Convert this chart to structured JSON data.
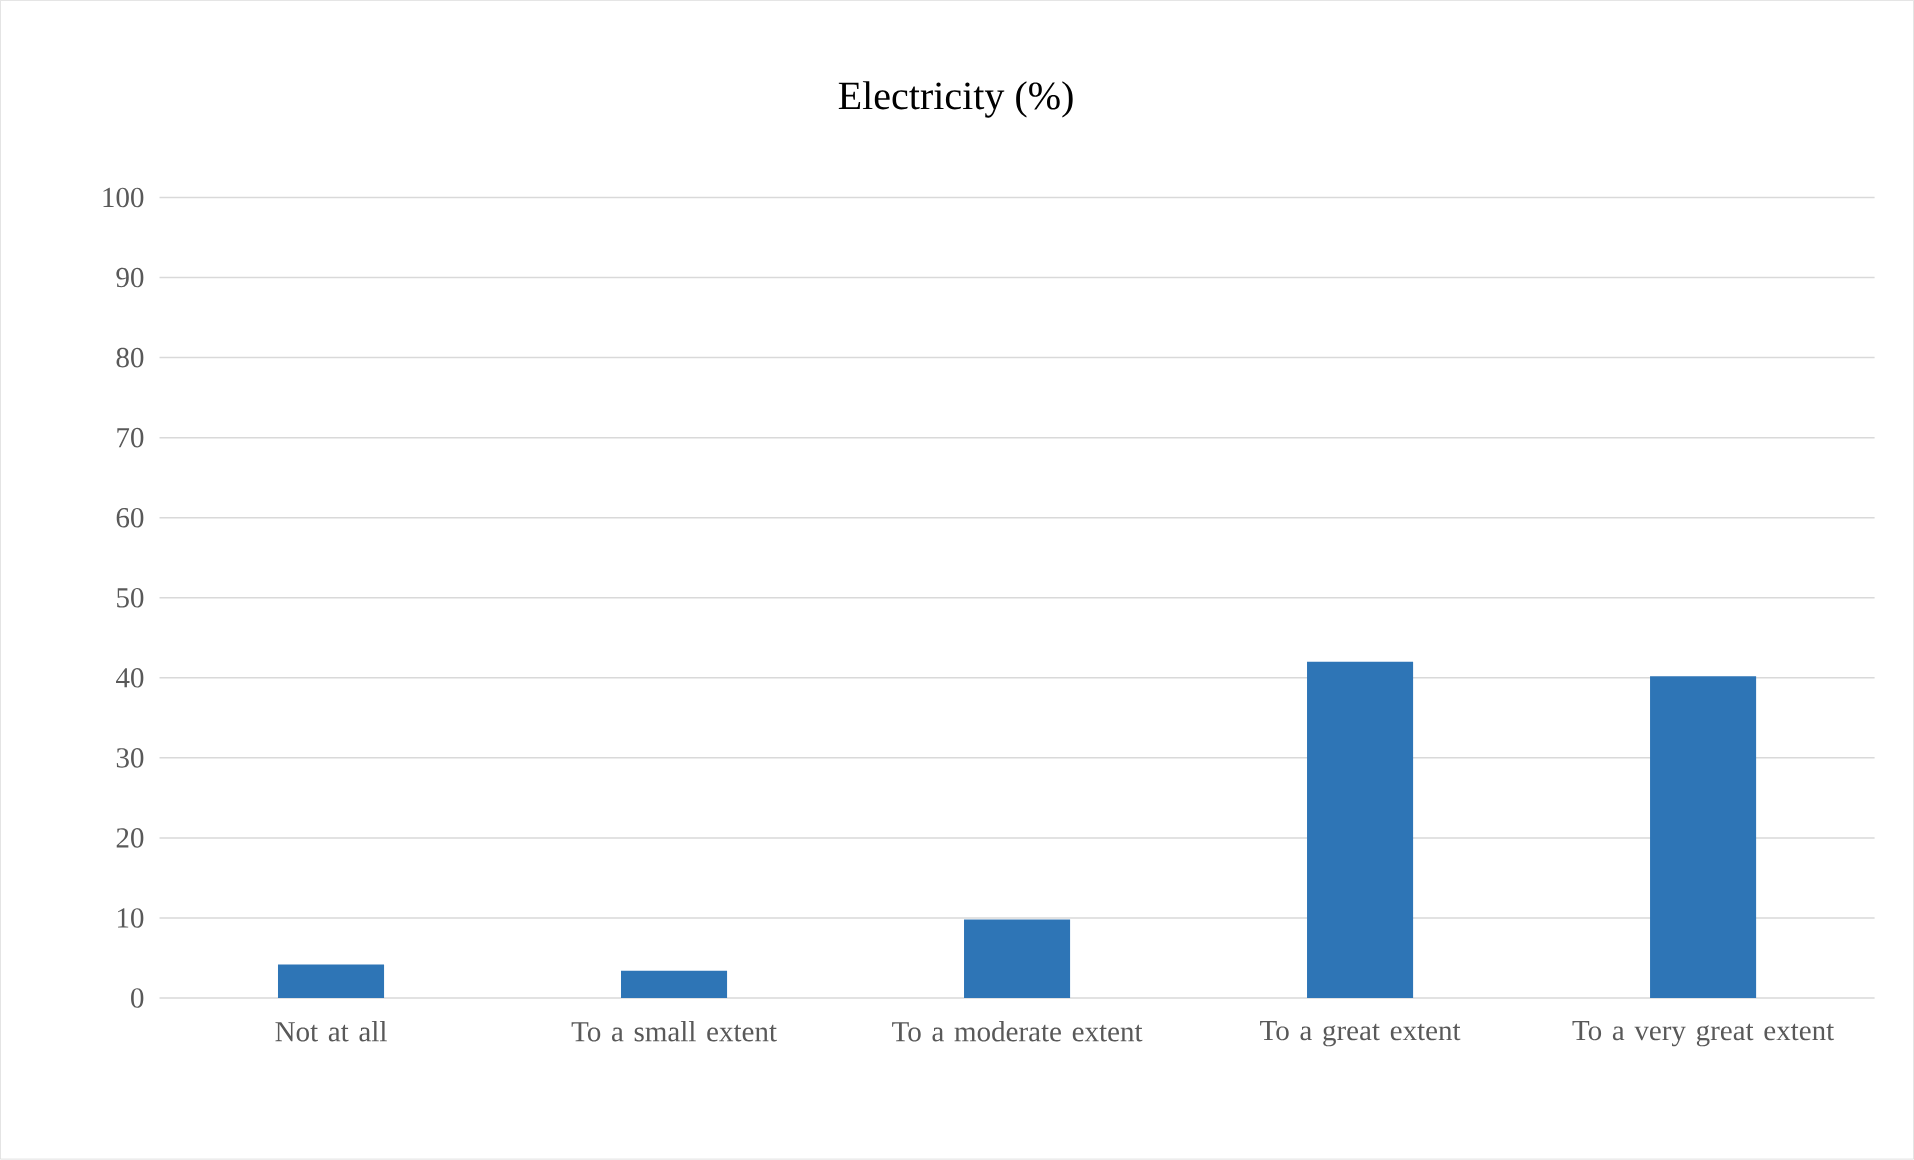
{
  "chart_data": {
    "type": "bar",
    "title": "Electricity (%)",
    "categories": [
      "Not at all",
      "To a small extent",
      "To a moderate extent",
      "To a great extent",
      "To a very great extent"
    ],
    "values": [
      4.2,
      3.4,
      9.8,
      42.0,
      40.2
    ],
    "color": "#2e75b6",
    "ylim": [
      0,
      100
    ],
    "yticks": [
      0,
      10,
      20,
      30,
      40,
      50,
      60,
      70,
      80,
      90,
      100
    ],
    "grid": "y"
  }
}
